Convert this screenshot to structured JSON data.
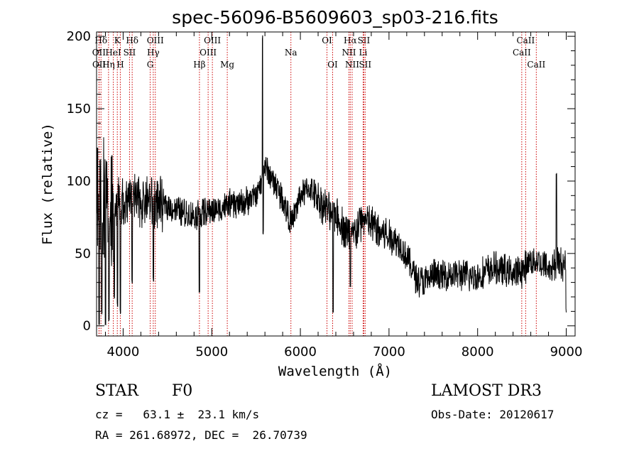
{
  "chart_data": {
    "type": "line",
    "title": "spec-56096-B5609603_sp03-216.fits",
    "xlabel": "Wavelength (Å)",
    "ylabel": "Flux (relative)",
    "xlim": [
      3700,
      9100
    ],
    "ylim": [
      -7,
      203
    ],
    "x_ticks": [
      4000,
      5000,
      6000,
      7000,
      8000,
      9000
    ],
    "y_ticks": [
      0,
      50,
      100,
      150,
      200
    ],
    "series": [
      {
        "name": "flux",
        "anchors_x": [
          3700,
          3720,
          3750,
          3800,
          3850,
          3900,
          3950,
          4000,
          4100,
          4200,
          4300,
          4400,
          4500,
          4600,
          4700,
          4800,
          4900,
          5000,
          5100,
          5200,
          5300,
          5400,
          5500,
          5560,
          5600,
          5650,
          5700,
          5800,
          5900,
          6000,
          6100,
          6200,
          6300,
          6400,
          6500,
          6600,
          6700,
          6800,
          6900,
          7000,
          7100,
          7200,
          7300,
          7400,
          7500,
          7600,
          7700,
          7800,
          7900,
          8000,
          8100,
          8200,
          8300,
          8400,
          8500,
          8600,
          8700,
          8800,
          8900,
          9000
        ],
        "anchors_y": [
          90,
          100,
          95,
          85,
          80,
          82,
          84,
          85,
          88,
          85,
          87,
          84,
          83,
          80,
          78,
          76,
          78,
          80,
          81,
          84,
          84,
          86,
          90,
          98,
          110,
          104,
          100,
          88,
          70,
          90,
          95,
          88,
          80,
          78,
          66,
          62,
          74,
          70,
          65,
          62,
          58,
          48,
          34,
          30,
          35,
          34,
          36,
          35,
          34,
          34,
          38,
          40,
          38,
          36,
          38,
          45,
          44,
          40,
          44,
          42
        ],
        "features": [
          {
            "x": 3730,
            "y": 0
          },
          {
            "x": 3760,
            "y": 10
          },
          {
            "x": 3800,
            "y": 0
          },
          {
            "x": 3840,
            "y": 5
          },
          {
            "x": 3900,
            "y": 20
          },
          {
            "x": 3935,
            "y": 15
          },
          {
            "x": 3968,
            "y": 10
          },
          {
            "x": 4102,
            "y": 30
          },
          {
            "x": 4340,
            "y": 32
          },
          {
            "x": 4861,
            "y": 25
          },
          {
            "x": 5575,
            "y": 200
          },
          {
            "x": 5580,
            "y": 65
          },
          {
            "x": 6368,
            "y": 10
          },
          {
            "x": 6563,
            "y": 28
          },
          {
            "x": 8890,
            "y": 105
          },
          {
            "x": 9000,
            "y": 10
          }
        ]
      }
    ],
    "lines": [
      {
        "name": "Hδ",
        "label": "Hδ",
        "wl": 3750,
        "row": 1
      },
      {
        "name": "OII",
        "label": "OII",
        "wl": 3727,
        "row": 2
      },
      {
        "name": "OII",
        "label": "OII",
        "wl": 3729,
        "row": 3
      },
      {
        "name": "K",
        "label": "K",
        "wl": 3934,
        "row": 1
      },
      {
        "name": "HeI",
        "label": "HeI",
        "wl": 3889,
        "row": 2
      },
      {
        "name": "Hη",
        "label": "Hη",
        "wl": 3835,
        "row": 3
      },
      {
        "name": "H",
        "label": "H",
        "wl": 3968,
        "row": 3
      },
      {
        "name": "Hδ",
        "label": "Hδ",
        "wl": 4102,
        "row": 1
      },
      {
        "name": "SII",
        "label": "SII",
        "wl": 4072,
        "row": 2
      },
      {
        "name": "OIII",
        "label": "OIII",
        "wl": 4363,
        "row": 1
      },
      {
        "name": "Hγ",
        "label": "Hγ",
        "wl": 4340,
        "row": 2
      },
      {
        "name": "G",
        "label": "G",
        "wl": 4305,
        "row": 3
      },
      {
        "name": "OIII",
        "label": "OIII",
        "wl": 5007,
        "row": 1
      },
      {
        "name": "OIII",
        "label": "OIII",
        "wl": 4959,
        "row": 2
      },
      {
        "name": "Hβ",
        "label": "Hβ",
        "wl": 4861,
        "row": 3
      },
      {
        "name": "Mg",
        "label": "Mg",
        "wl": 5175,
        "row": 3
      },
      {
        "name": "Na",
        "label": "Na",
        "wl": 5893,
        "row": 2
      },
      {
        "name": "OI",
        "label": "OI",
        "wl": 6300,
        "row": 1
      },
      {
        "name": "OI",
        "label": "OI",
        "wl": 6364,
        "row": 3
      },
      {
        "name": "Hα",
        "label": "Hα",
        "wl": 6563,
        "row": 1
      },
      {
        "name": "NII",
        "label": "NII",
        "wl": 6548,
        "row": 2
      },
      {
        "name": "NII",
        "label": "NII",
        "wl": 6584,
        "row": 3
      },
      {
        "name": "SII",
        "label": "SII",
        "wl": 6716,
        "row": 1
      },
      {
        "name": "Li",
        "label": "Li",
        "wl": 6708,
        "row": 2
      },
      {
        "name": "SII",
        "label": "SII",
        "wl": 6731,
        "row": 3
      },
      {
        "name": "CaII",
        "label": "CaII",
        "wl": 8542,
        "row": 1
      },
      {
        "name": "CaII",
        "label": "CaII",
        "wl": 8498,
        "row": 2
      },
      {
        "name": "CaII",
        "label": "CaII",
        "wl": 8662,
        "row": 3
      }
    ],
    "line_color": "#cc0000",
    "series_color": "#000000",
    "grid": false
  },
  "info": {
    "object_class": "STAR",
    "subclass": "F0",
    "survey": "LAMOST DR3",
    "redshift": "cz =   63.1 ±  23.1 km/s",
    "obs_date": "Obs-Date: 20120617",
    "coords": "RA = 261.68972, DEC =  26.70739"
  }
}
